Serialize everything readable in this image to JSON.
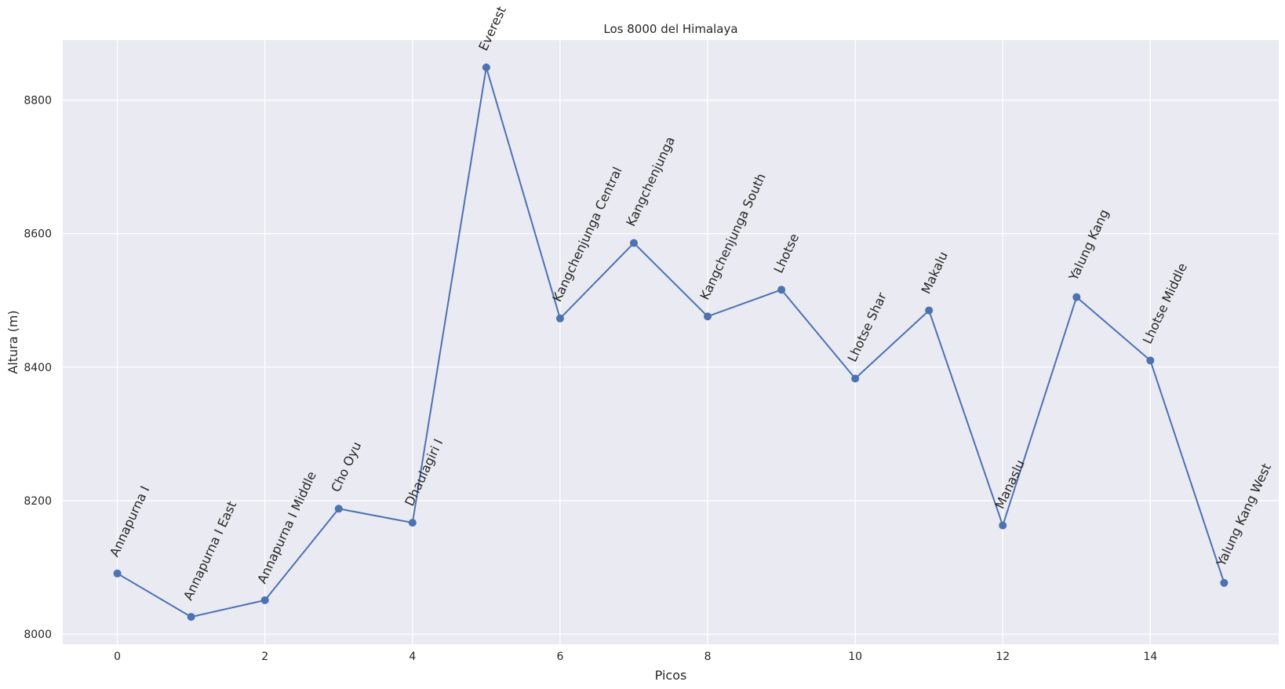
{
  "chart_data": {
    "type": "line",
    "title": "Los 8000 del Himalaya",
    "xlabel": "Picos",
    "ylabel": "Altura (m)",
    "grid": true,
    "x": [
      0,
      1,
      2,
      3,
      4,
      5,
      6,
      7,
      8,
      9,
      10,
      11,
      12,
      13,
      14,
      15
    ],
    "values": [
      8091,
      8026,
      8051,
      8188,
      8167,
      8849,
      8473,
      8586,
      8476,
      8516,
      8383,
      8485,
      8163,
      8505,
      8410,
      8077
    ],
    "point_labels": [
      "Annapurna I",
      "Annapurna I East",
      "Annapurna I Middle",
      "Cho Oyu",
      "Dhaulagiri I",
      "Everest",
      "Kangchenjunga Central",
      "Kangchenjunga",
      "Kangchenjunga South",
      "Lhotse",
      "Lhotse Shar",
      "Makalu",
      "Manaslu",
      "Yalung Kang",
      "Lhotse Middle",
      "Yalung Kang West"
    ],
    "xlim": [
      -0.74,
      15.74
    ],
    "ylim": [
      7985,
      8890
    ],
    "xticks": [
      0,
      2,
      4,
      6,
      8,
      10,
      12,
      14
    ],
    "yticks": [
      8000,
      8200,
      8400,
      8600,
      8800
    ],
    "colors": {
      "line": "#4c72b0",
      "plot_bg": "#eaeaf2",
      "grid": "#ffffff"
    }
  }
}
